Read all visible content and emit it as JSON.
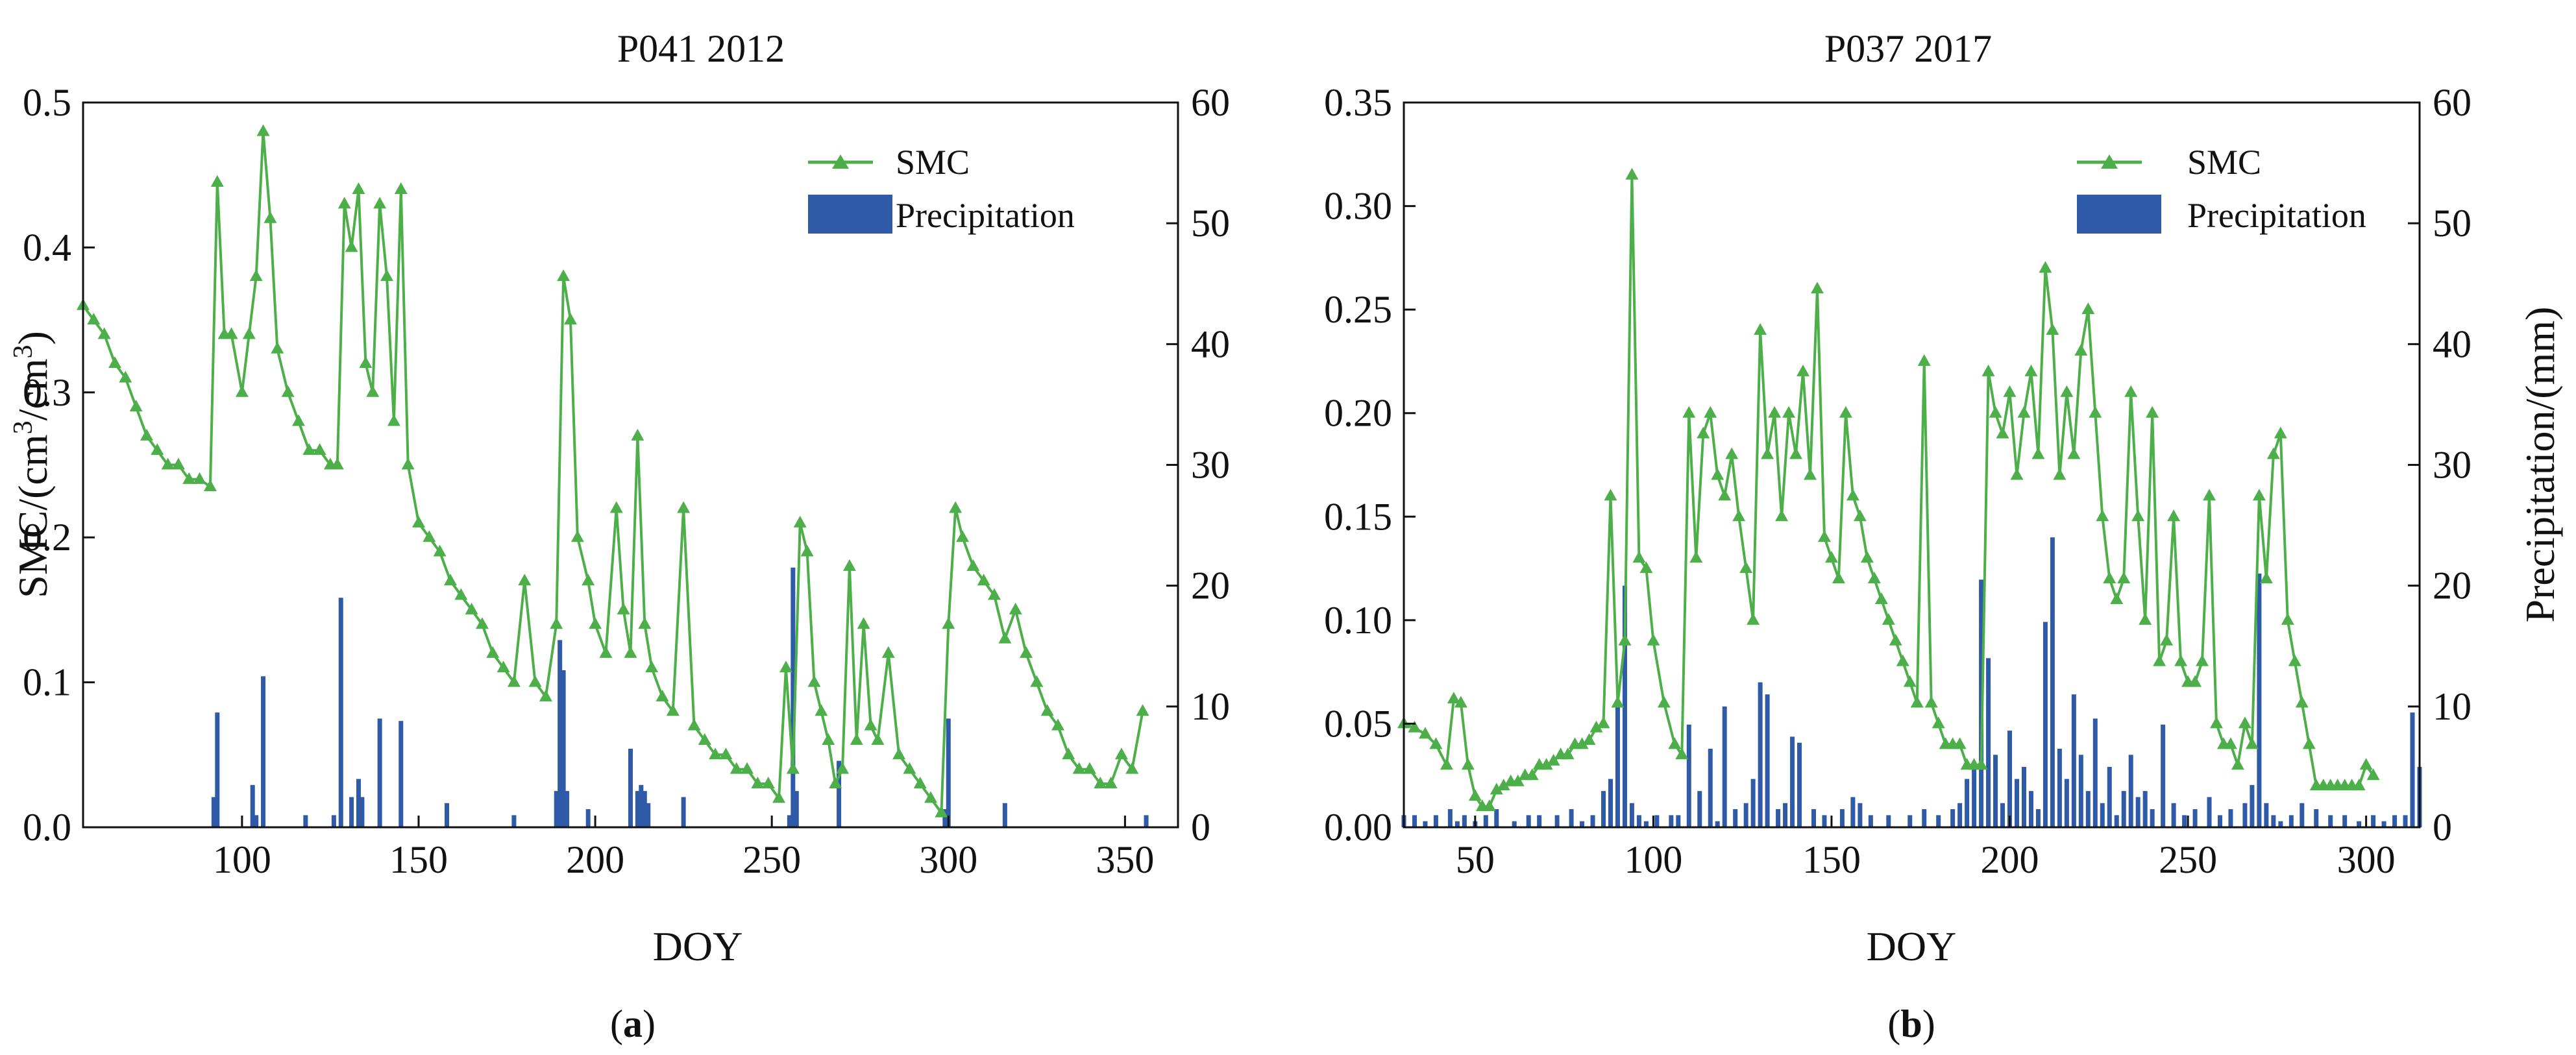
{
  "colors": {
    "smc": "#4DAF4A",
    "precipitation": "#2E5AA8"
  },
  "chart_data": [
    {
      "type": "line+bar",
      "panel": "a",
      "title": "P041 2012",
      "caption": "a",
      "xlabel": "DOY",
      "ylabel": "SMC/(cm³/cm³)",
      "y2label": "",
      "xlim": [
        55,
        365
      ],
      "ylim": [
        0,
        0.5
      ],
      "y2lim": [
        0,
        60
      ],
      "xticks": [
        "100",
        "150",
        "200",
        "250",
        "300",
        "350"
      ],
      "yticks": [
        "0.0",
        "0.1",
        "0.2",
        "0.3",
        "0.4",
        "0.5"
      ],
      "y2ticks": [
        "0",
        "10",
        "20",
        "30",
        "40",
        "50",
        "60"
      ],
      "legend": {
        "position": "top-right",
        "smc_label": "SMC",
        "precip_label": "Precipitation"
      },
      "smc": {
        "x": [
          55,
          58,
          61,
          64,
          67,
          70,
          73,
          76,
          79,
          82,
          85,
          88,
          91,
          93,
          95,
          97,
          100,
          102,
          104,
          106,
          108,
          110,
          113,
          116,
          119,
          122,
          125,
          127,
          129,
          131,
          133,
          135,
          137,
          139,
          141,
          143,
          145,
          147,
          150,
          153,
          156,
          159,
          162,
          165,
          168,
          171,
          174,
          177,
          180,
          183,
          186,
          189,
          191,
          193,
          195,
          198,
          200,
          203,
          206,
          208,
          210,
          212,
          214,
          216,
          219,
          222,
          225,
          228,
          231,
          234,
          237,
          240,
          243,
          246,
          249,
          252,
          254,
          256,
          258,
          260,
          262,
          264,
          266,
          268,
          270,
          272,
          274,
          276,
          278,
          280,
          283,
          286,
          289,
          292,
          295,
          298,
          300,
          302,
          304,
          307,
          310,
          313,
          316,
          319,
          322,
          325,
          328,
          331,
          334,
          337,
          340,
          343,
          346,
          349,
          352,
          355
        ],
        "y": [
          0.36,
          0.35,
          0.34,
          0.32,
          0.31,
          0.29,
          0.27,
          0.26,
          0.25,
          0.25,
          0.24,
          0.24,
          0.235,
          0.445,
          0.34,
          0.34,
          0.3,
          0.34,
          0.38,
          0.48,
          0.42,
          0.33,
          0.3,
          0.28,
          0.26,
          0.26,
          0.25,
          0.25,
          0.43,
          0.4,
          0.44,
          0.32,
          0.3,
          0.43,
          0.38,
          0.28,
          0.44,
          0.25,
          0.21,
          0.2,
          0.19,
          0.17,
          0.16,
          0.15,
          0.14,
          0.12,
          0.11,
          0.1,
          0.17,
          0.1,
          0.09,
          0.14,
          0.38,
          0.35,
          0.2,
          0.17,
          0.14,
          0.12,
          0.22,
          0.15,
          0.12,
          0.27,
          0.14,
          0.11,
          0.09,
          0.08,
          0.22,
          0.07,
          0.06,
          0.05,
          0.05,
          0.04,
          0.04,
          0.03,
          0.03,
          0.02,
          0.11,
          0.04,
          0.21,
          0.19,
          0.1,
          0.08,
          0.06,
          0.03,
          0.04,
          0.18,
          0.06,
          0.14,
          0.07,
          0.06,
          0.12,
          0.05,
          0.04,
          0.03,
          0.02,
          0.01,
          0.14,
          0.22,
          0.2,
          0.18,
          0.17,
          0.16,
          0.13,
          0.15,
          0.12,
          0.1,
          0.08,
          0.07,
          0.05,
          0.04,
          0.04,
          0.03,
          0.03,
          0.05,
          0.04,
          0.08
        ]
      },
      "precip": {
        "x": [
          92,
          93,
          103,
          104,
          106,
          118,
          126,
          128,
          131,
          133,
          134,
          139,
          145,
          158,
          177,
          189,
          190,
          191,
          192,
          198,
          210,
          212,
          213,
          214,
          215,
          225,
          255,
          256,
          257,
          269,
          299,
          300,
          316,
          356
        ],
        "y": [
          2.5,
          9.5,
          3.5,
          1,
          12.5,
          1,
          1,
          19,
          2.5,
          4,
          2.5,
          9,
          8.8,
          2,
          1,
          3,
          15.5,
          13,
          3,
          1.5,
          6.5,
          3,
          3.5,
          3,
          2,
          2.5,
          1,
          21.5,
          3,
          5.5,
          1.5,
          9,
          2,
          1
        ]
      }
    },
    {
      "type": "line+bar",
      "panel": "b",
      "title": "P037 2017",
      "caption": "b",
      "xlabel": "DOY",
      "ylabel": "",
      "y2label": "Precipitation/(mm)",
      "xlim": [
        30,
        315
      ],
      "ylim": [
        0,
        0.35
      ],
      "y2lim": [
        0,
        60
      ],
      "xticks": [
        "50",
        "100",
        "150",
        "200",
        "250",
        "300"
      ],
      "yticks": [
        "0.00",
        "0.05",
        "0.10",
        "0.15",
        "0.20",
        "0.25",
        "0.30",
        "0.35"
      ],
      "y2ticks": [
        "0",
        "10",
        "20",
        "30",
        "40",
        "50",
        "60"
      ],
      "legend": {
        "position": "top-right",
        "smc_label": "SMC",
        "precip_label": "Precipitation"
      },
      "smc": {
        "x": [
          30,
          33,
          36,
          39,
          42,
          44,
          46,
          48,
          50,
          52,
          54,
          56,
          58,
          60,
          62,
          64,
          66,
          68,
          70,
          72,
          74,
          76,
          78,
          80,
          82,
          84,
          86,
          88,
          90,
          92,
          94,
          96,
          98,
          100,
          103,
          106,
          108,
          110,
          112,
          114,
          116,
          118,
          120,
          122,
          124,
          126,
          128,
          130,
          132,
          134,
          136,
          138,
          140,
          142,
          144,
          146,
          148,
          150,
          152,
          154,
          156,
          158,
          160,
          162,
          164,
          166,
          168,
          170,
          172,
          174,
          176,
          178,
          180,
          182,
          184,
          186,
          188,
          190,
          192,
          194,
          196,
          198,
          200,
          202,
          204,
          206,
          208,
          210,
          212,
          214,
          216,
          218,
          220,
          222,
          224,
          226,
          228,
          230,
          232,
          234,
          236,
          238,
          240,
          242,
          244,
          246,
          248,
          250,
          252,
          254,
          256,
          258,
          260,
          262,
          264,
          266,
          268,
          270,
          272,
          274,
          276,
          278,
          280,
          282,
          284,
          286,
          288,
          290,
          292,
          294,
          296,
          298,
          300,
          302
        ],
        "y": [
          0.05,
          0.048,
          0.045,
          0.04,
          0.03,
          0.062,
          0.06,
          0.03,
          0.015,
          0.01,
          0.01,
          0.018,
          0.02,
          0.022,
          0.022,
          0.025,
          0.025,
          0.03,
          0.03,
          0.032,
          0.035,
          0.035,
          0.04,
          0.04,
          0.042,
          0.048,
          0.05,
          0.16,
          0.06,
          0.09,
          0.315,
          0.13,
          0.125,
          0.09,
          0.06,
          0.04,
          0.035,
          0.2,
          0.13,
          0.19,
          0.2,
          0.17,
          0.16,
          0.18,
          0.15,
          0.125,
          0.1,
          0.24,
          0.18,
          0.2,
          0.15,
          0.2,
          0.18,
          0.22,
          0.17,
          0.26,
          0.14,
          0.13,
          0.12,
          0.2,
          0.16,
          0.15,
          0.13,
          0.12,
          0.11,
          0.1,
          0.09,
          0.08,
          0.07,
          0.06,
          0.225,
          0.06,
          0.05,
          0.04,
          0.04,
          0.04,
          0.03,
          0.03,
          0.03,
          0.22,
          0.2,
          0.19,
          0.21,
          0.17,
          0.2,
          0.22,
          0.18,
          0.27,
          0.24,
          0.17,
          0.21,
          0.18,
          0.23,
          0.25,
          0.2,
          0.15,
          0.12,
          0.11,
          0.12,
          0.21,
          0.15,
          0.1,
          0.2,
          0.08,
          0.09,
          0.15,
          0.08,
          0.07,
          0.07,
          0.08,
          0.16,
          0.05,
          0.04,
          0.04,
          0.03,
          0.05,
          0.04,
          0.16,
          0.12,
          0.18,
          0.19,
          0.1,
          0.08,
          0.06,
          0.04,
          0.02,
          0.02,
          0.02,
          0.02,
          0.02,
          0.02,
          0.02,
          0.03,
          0.025
        ]
      },
      "precip": {
        "x": [
          30,
          33,
          36,
          39,
          43,
          45,
          47,
          50,
          53,
          56,
          61,
          65,
          68,
          73,
          77,
          80,
          83,
          86,
          88,
          90,
          92,
          94,
          96,
          98,
          101,
          105,
          107,
          110,
          113,
          116,
          118,
          120,
          123,
          126,
          128,
          130,
          132,
          135,
          137,
          139,
          141,
          145,
          148,
          153,
          156,
          158,
          161,
          166,
          172,
          176,
          180,
          184,
          186,
          188,
          190,
          192,
          194,
          196,
          198,
          200,
          202,
          204,
          206,
          208,
          210,
          212,
          214,
          216,
          218,
          220,
          222,
          224,
          226,
          228,
          230,
          232,
          234,
          236,
          238,
          240,
          243,
          246,
          249,
          252,
          256,
          259,
          262,
          266,
          268,
          270,
          272,
          274,
          276,
          279,
          282,
          286,
          290,
          294,
          298,
          302,
          305,
          308,
          311,
          313,
          315
        ],
        "y": [
          1,
          1,
          0.5,
          1,
          1.5,
          0.5,
          1,
          0.5,
          1,
          1.5,
          0.5,
          1,
          1,
          1,
          1.5,
          0.5,
          1,
          3,
          4,
          10,
          20,
          2,
          1,
          0.5,
          1,
          1,
          1,
          8.5,
          3,
          6.5,
          0.5,
          10,
          1.5,
          2,
          4,
          12,
          11,
          1.5,
          2,
          7.5,
          7,
          1.5,
          1,
          1.5,
          2.5,
          2,
          1,
          1,
          1,
          1.5,
          1,
          1.5,
          2,
          4,
          5,
          20.5,
          14,
          6,
          2,
          8,
          4,
          5,
          3,
          1.5,
          17,
          24,
          6.5,
          4,
          11,
          6,
          3,
          9,
          2,
          5,
          1,
          3,
          6,
          2.5,
          3,
          1.5,
          8.5,
          2,
          1,
          1.5,
          2.5,
          1,
          1.5,
          2,
          3.5,
          21,
          2,
          1,
          0.5,
          1,
          2,
          1.5,
          1,
          1,
          0.5,
          1,
          0.5,
          1,
          1,
          9.5,
          5
        ]
      }
    }
  ]
}
